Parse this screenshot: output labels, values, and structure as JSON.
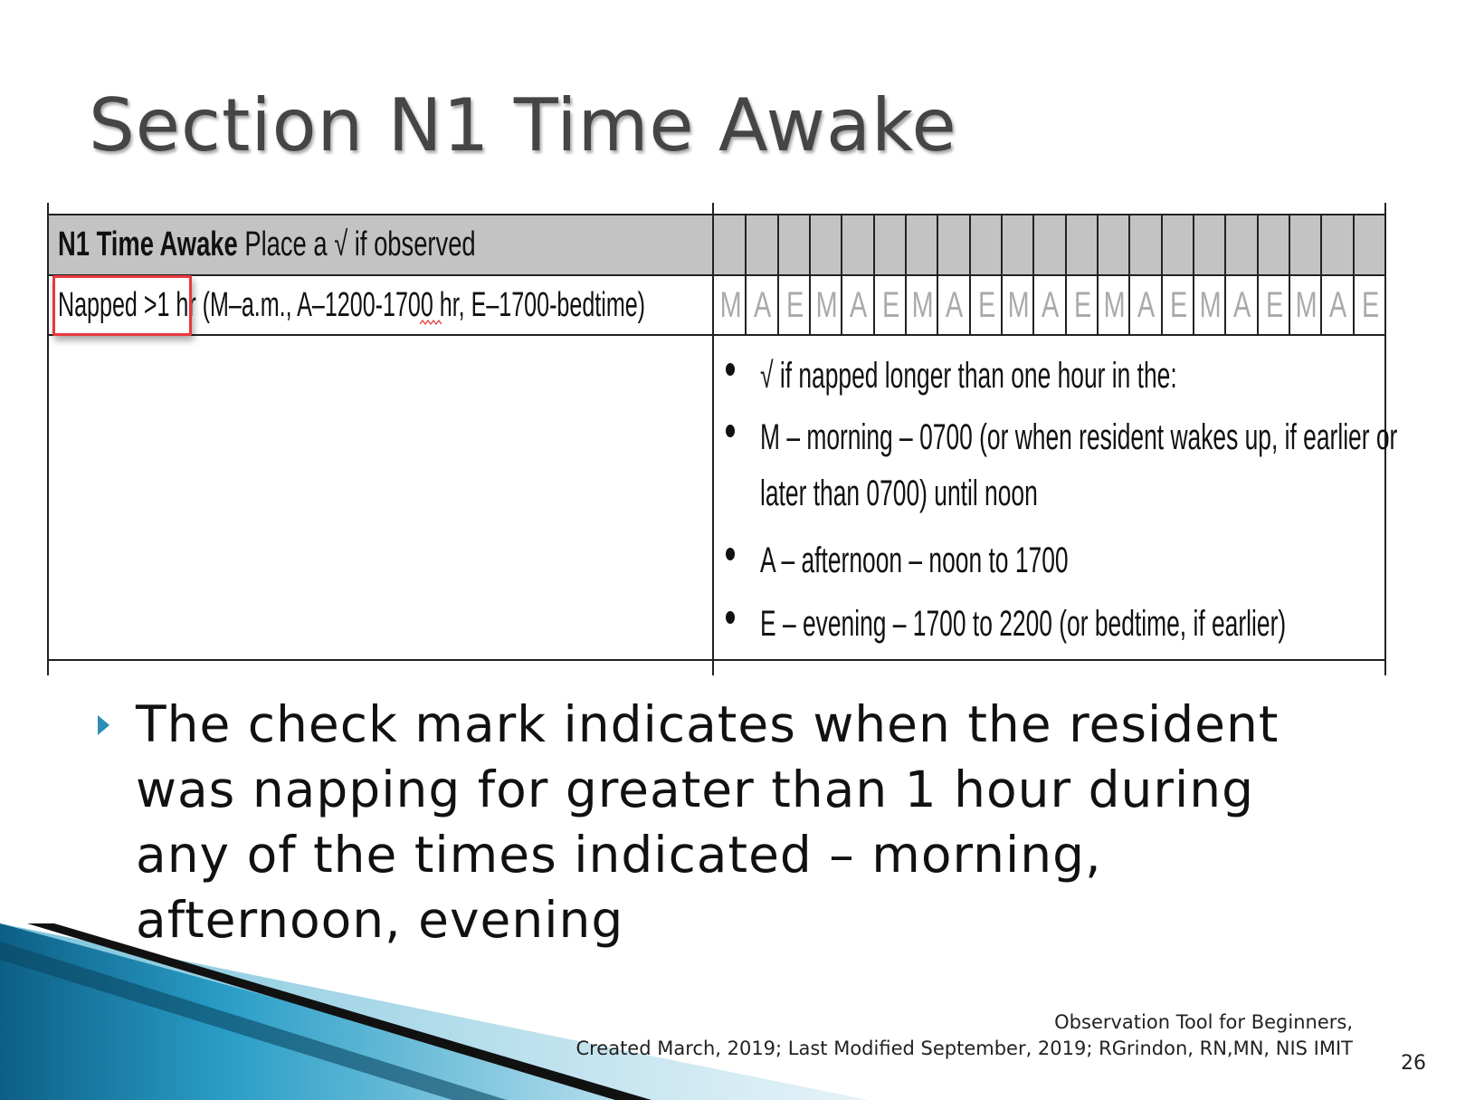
{
  "slide": {
    "title": "Section N1 Time Awake",
    "page_number": "26"
  },
  "form": {
    "header_bold": "N1 Time Awake",
    "header_rest": " Place a √ if observed",
    "row_label_highlight": "Napped >1 hr",
    "row_label_rest": " (M–a.m., A–1200-1700 hr, E–1700-bedtime)",
    "columns": [
      "M",
      "A",
      "E",
      "M",
      "A",
      "E",
      "M",
      "A",
      "E",
      "M",
      "A",
      "E",
      "M",
      "A",
      "E",
      "M",
      "A",
      "E",
      "M",
      "A",
      "E"
    ],
    "bullets": [
      "√ if napped longer than one hour in the:",
      "M – morning – 0700 (or when resident wakes up, if earlier or",
      "later than 0700) until noon",
      "A – afternoon – noon to 1700",
      "E – evening – 1700 to 2200 (or bedtime, if earlier)"
    ]
  },
  "body": {
    "text": "The check mark indicates when the resident was napping for greater than 1 hour during any of the times indicated – morning, afternoon, evening"
  },
  "footer": {
    "line1": "Observation Tool for Beginners,",
    "line2": "Created March, 2019; Last  Modified September, 2019;  RGrindon, RN,MN, NIS IMIT"
  },
  "colors": {
    "accent": "#2b8fb5",
    "highlight": "#e8383d",
    "header_bg": "#c3c3c3"
  }
}
